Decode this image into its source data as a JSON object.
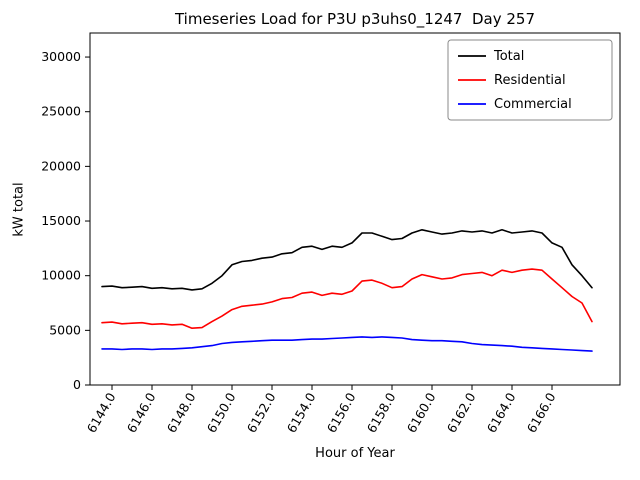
{
  "figure": {
    "title": "Timeseries Load for P3U p3uhs0_1247  Day 257",
    "xlabel": "Hour of Year",
    "ylabel": "kW total"
  },
  "chart_data": {
    "type": "line",
    "title": "Timeseries Load for P3U p3uhs0_1247  Day 257",
    "xlabel": "Hour of Year",
    "ylabel": "kW total",
    "xlim": [
      6142.9,
      6169.4
    ],
    "ylim": [
      0,
      32200
    ],
    "xticks": [
      6144,
      6146,
      6148,
      6150,
      6152,
      6154,
      6156,
      6158,
      6160,
      6162,
      6164,
      6166
    ],
    "xtick_labels": [
      "6144.0",
      "6146.0",
      "6148.0",
      "6150.0",
      "6152.0",
      "6154.0",
      "6156.0",
      "6158.0",
      "6160.0",
      "6162.0",
      "6164.0",
      "6166.0"
    ],
    "yticks": [
      0,
      5000,
      10000,
      15000,
      20000,
      25000,
      30000
    ],
    "legend": {
      "position": "upper right",
      "entries": [
        "Total",
        "Residential",
        "Commercial"
      ]
    },
    "x": [
      6143.5,
      6144.0,
      6144.5,
      6145.0,
      6145.5,
      6146.0,
      6146.5,
      6147.0,
      6147.5,
      6148.0,
      6148.5,
      6149.0,
      6149.5,
      6150.0,
      6150.5,
      6151.0,
      6151.5,
      6152.0,
      6152.5,
      6153.0,
      6153.5,
      6154.0,
      6154.5,
      6155.0,
      6155.5,
      6156.0,
      6156.5,
      6157.0,
      6157.5,
      6158.0,
      6158.5,
      6159.0,
      6159.5,
      6160.0,
      6160.5,
      6161.0,
      6161.5,
      6162.0,
      6162.5,
      6163.0,
      6163.5,
      6164.0,
      6164.5,
      6165.0,
      6165.5,
      6166.0,
      6166.5,
      6167.0,
      6167.5,
      6168.0
    ],
    "series": [
      {
        "name": "Total",
        "color": "#000000",
        "values": [
          9000,
          9050,
          8900,
          8950,
          9000,
          8850,
          8900,
          8800,
          8850,
          8700,
          8800,
          9300,
          10000,
          11000,
          11300,
          11400,
          11600,
          11700,
          12000,
          12100,
          12600,
          12700,
          12400,
          12700,
          12600,
          13000,
          13900,
          13900,
          13600,
          13300,
          13400,
          13900,
          14200,
          14000,
          13800,
          13900,
          14100,
          14000,
          14100,
          13900,
          14200,
          13900,
          14000,
          14100,
          13900,
          13000,
          12600,
          11000,
          10000,
          8900
        ]
      },
      {
        "name": "Residential",
        "color": "#ff0000",
        "values": [
          5700,
          5750,
          5600,
          5650,
          5700,
          5550,
          5600,
          5500,
          5550,
          5200,
          5250,
          5800,
          6300,
          6900,
          7200,
          7300,
          7400,
          7600,
          7900,
          8000,
          8400,
          8500,
          8200,
          8400,
          8300,
          8600,
          9500,
          9600,
          9300,
          8900,
          9000,
          9700,
          10100,
          9900,
          9700,
          9800,
          10100,
          10200,
          10300,
          10000,
          10500,
          10300,
          10500,
          10600,
          10500,
          9700,
          8900,
          8100,
          7500,
          5800
        ]
      },
      {
        "name": "Commercial",
        "color": "#0000ff",
        "values": [
          3300,
          3300,
          3250,
          3300,
          3300,
          3250,
          3300,
          3300,
          3350,
          3400,
          3500,
          3600,
          3800,
          3900,
          3950,
          4000,
          4050,
          4100,
          4100,
          4100,
          4150,
          4200,
          4200,
          4250,
          4300,
          4350,
          4400,
          4350,
          4400,
          4350,
          4300,
          4150,
          4100,
          4050,
          4050,
          4000,
          3950,
          3800,
          3700,
          3650,
          3600,
          3550,
          3450,
          3400,
          3350,
          3300,
          3250,
          3200,
          3150,
          3100
        ]
      }
    ]
  }
}
